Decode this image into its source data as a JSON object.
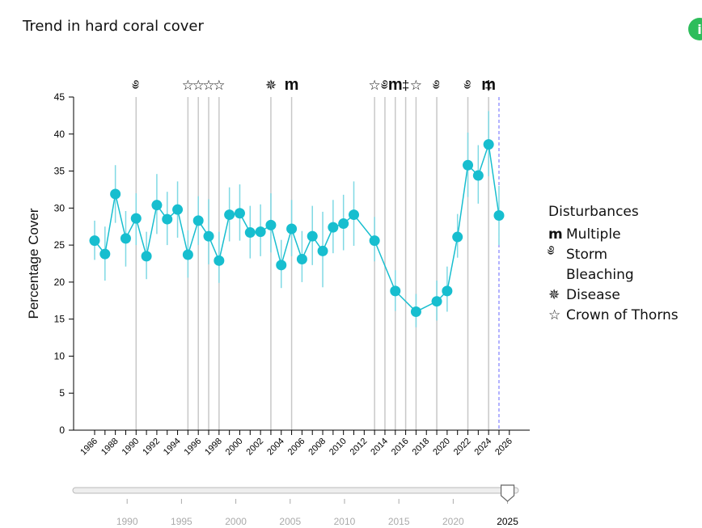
{
  "title": "Trend in hard coral cover",
  "info_icon": "info-icon",
  "chart_data": {
    "type": "line",
    "title": "Trend in hard coral cover",
    "xlabel": "",
    "ylabel": "Percentage Cover",
    "ylim": [
      0,
      45
    ],
    "xlim": [
      1985,
      2027
    ],
    "yticks": [
      0,
      5,
      10,
      15,
      20,
      25,
      30,
      35,
      40,
      45
    ],
    "xtick_labels": [
      "1986",
      "1988",
      "1990",
      "1992",
      "1994",
      "1996",
      "1998",
      "2000",
      "2002",
      "2004",
      "2006",
      "2008",
      "2010",
      "2012",
      "2014",
      "2016",
      "2018",
      "2020",
      "2022",
      "2024",
      "2026"
    ],
    "series": [
      {
        "name": "Hard coral cover",
        "color": "#17becf",
        "points": [
          {
            "x": 1986.0,
            "y": 25.6,
            "lo": 23.0,
            "hi": 28.3
          },
          {
            "x": 1987.0,
            "y": 23.8,
            "lo": 20.2,
            "hi": 27.5
          },
          {
            "x": 1988.0,
            "y": 31.9,
            "lo": 28.0,
            "hi": 35.8
          },
          {
            "x": 1989.0,
            "y": 25.9,
            "lo": 22.1,
            "hi": 29.6
          },
          {
            "x": 1990.0,
            "y": 28.6,
            "lo": 25.0,
            "hi": 32.0
          },
          {
            "x": 1991.0,
            "y": 23.5,
            "lo": 20.4,
            "hi": 26.8
          },
          {
            "x": 1992.0,
            "y": 30.4,
            "lo": 26.5,
            "hi": 34.6
          },
          {
            "x": 1993.0,
            "y": 28.5,
            "lo": 25.0,
            "hi": 32.2
          },
          {
            "x": 1994.0,
            "y": 29.8,
            "lo": 26.0,
            "hi": 33.6
          },
          {
            "x": 1995.0,
            "y": 23.7,
            "lo": 20.6,
            "hi": 27.0
          },
          {
            "x": 1996.0,
            "y": 28.3,
            "lo": 25.0,
            "hi": 31.6
          },
          {
            "x": 1997.0,
            "y": 26.2,
            "lo": 22.4,
            "hi": 31.2
          },
          {
            "x": 1998.0,
            "y": 22.9,
            "lo": 19.9,
            "hi": 26.8
          },
          {
            "x": 1999.0,
            "y": 29.1,
            "lo": 25.5,
            "hi": 32.8
          },
          {
            "x": 2000.0,
            "y": 29.3,
            "lo": 25.6,
            "hi": 33.2
          },
          {
            "x": 2001.0,
            "y": 26.7,
            "lo": 23.2,
            "hi": 30.3
          },
          {
            "x": 2002.0,
            "y": 26.8,
            "lo": 23.5,
            "hi": 30.5
          },
          {
            "x": 2003.0,
            "y": 27.7,
            "lo": 24.0,
            "hi": 32.0
          },
          {
            "x": 2004.0,
            "y": 22.3,
            "lo": 19.2,
            "hi": 25.7
          },
          {
            "x": 2005.0,
            "y": 27.2,
            "lo": 23.5,
            "hi": 31.1
          },
          {
            "x": 2006.0,
            "y": 23.1,
            "lo": 20.0,
            "hi": 26.9
          },
          {
            "x": 2007.0,
            "y": 26.2,
            "lo": 22.3,
            "hi": 30.3
          },
          {
            "x": 2008.0,
            "y": 24.2,
            "lo": 19.3,
            "hi": 29.5
          },
          {
            "x": 2009.0,
            "y": 27.4,
            "lo": 23.9,
            "hi": 31.1
          },
          {
            "x": 2010.0,
            "y": 27.9,
            "lo": 24.3,
            "hi": 31.8
          },
          {
            "x": 2011.0,
            "y": 29.1,
            "lo": 24.9,
            "hi": 33.6
          },
          {
            "x": 2013.0,
            "y": 25.6,
            "lo": 22.8,
            "hi": 28.8
          },
          {
            "x": 2015.0,
            "y": 18.8,
            "lo": 16.1,
            "hi": 21.6
          },
          {
            "x": 2017.0,
            "y": 16.0,
            "lo": 13.9,
            "hi": 18.4
          },
          {
            "x": 2019.0,
            "y": 17.4,
            "lo": 14.8,
            "hi": 20.2
          },
          {
            "x": 2020.0,
            "y": 18.8,
            "lo": 16.0,
            "hi": 22.1
          },
          {
            "x": 2021.0,
            "y": 26.1,
            "lo": 23.3,
            "hi": 29.2
          },
          {
            "x": 2022.0,
            "y": 35.8,
            "lo": 31.5,
            "hi": 40.2
          },
          {
            "x": 2023.0,
            "y": 34.4,
            "lo": 30.6,
            "hi": 38.5
          },
          {
            "x": 2024.0,
            "y": 38.6,
            "lo": 34.3,
            "hi": 43.1
          },
          {
            "x": 2025.0,
            "y": 29.0,
            "lo": 25.0,
            "hi": 33.0
          }
        ]
      }
    ],
    "disturbances": [
      {
        "x": 1990.0,
        "type": "Storm"
      },
      {
        "x": 1995.0,
        "type": "Crown of Thorns"
      },
      {
        "x": 1996.0,
        "type": "Crown of Thorns"
      },
      {
        "x": 1997.0,
        "type": "Crown of Thorns"
      },
      {
        "x": 1998.0,
        "type": "Crown of Thorns"
      },
      {
        "x": 2003.0,
        "type": "Disease"
      },
      {
        "x": 2005.0,
        "type": "Multiple"
      },
      {
        "x": 2013.0,
        "type": "Crown of Thorns"
      },
      {
        "x": 2014.0,
        "type": "Storm"
      },
      {
        "x": 2015.0,
        "type": "Multiple"
      },
      {
        "x": 2016.0,
        "type": "Bleaching"
      },
      {
        "x": 2017.0,
        "type": "Crown of Thorns"
      },
      {
        "x": 2019.0,
        "type": "Storm"
      },
      {
        "x": 2022.0,
        "type": "Storm"
      },
      {
        "x": 2024.0,
        "type": "Multiple"
      },
      {
        "x": 2024.0,
        "type": "Bleaching"
      }
    ],
    "current_year_marker": 2025,
    "legend": {
      "title": "Disturbances",
      "placement": "right",
      "items": [
        {
          "label": "Multiple",
          "icon": "m"
        },
        {
          "label": "Storm",
          "icon": "֎"
        },
        {
          "label": "Bleaching",
          "icon": "🌡"
        },
        {
          "label": "Disease",
          "icon": "✵"
        },
        {
          "label": "Crown of Thorns",
          "icon": "☆"
        }
      ]
    }
  },
  "slider": {
    "min": 1985,
    "max": 2026,
    "value": 2025,
    "tick_labels": [
      "1990",
      "1995",
      "2000",
      "2005",
      "2010",
      "2015",
      "2020",
      "2025"
    ],
    "selected_label": "2025"
  },
  "colors": {
    "series": "#17becf",
    "errorbar": "#7fd9e4",
    "disturbance_line": "#c8c8c8",
    "current_marker": "#6666ff",
    "info": "#2dbd5b"
  }
}
